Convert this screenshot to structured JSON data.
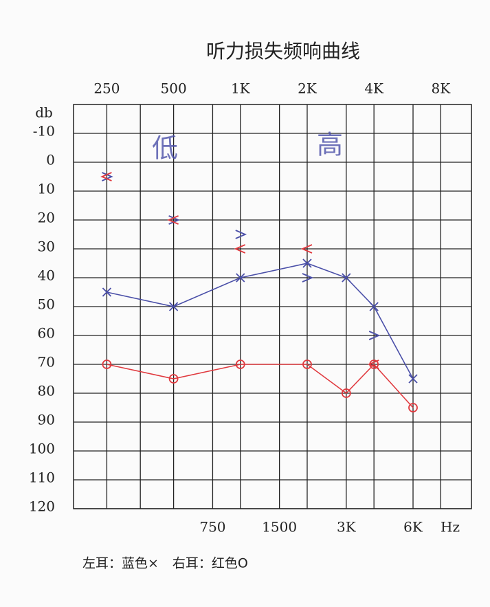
{
  "chart_data": {
    "type": "audiogram",
    "title": "听力损失频响曲线",
    "y_label": "db",
    "x_unit": "Hz",
    "xscale": "log",
    "xlim": [
      177,
      11000
    ],
    "xticks": [
      250,
      500,
      {
        "value": 1000,
        "label": "1K"
      },
      {
        "value": 2000,
        "label": "2K"
      },
      {
        "value": 4000,
        "label": "4K"
      },
      {
        "value": 8000,
        "label": "8K"
      }
    ],
    "x2ticks": [
      750,
      1500,
      {
        "value": 3000,
        "label": "3K"
      },
      {
        "value": 6000,
        "label": "6K"
      }
    ],
    "x_grid": [
      250,
      354,
      500,
      750,
      1000,
      1500,
      2000,
      3000,
      4000,
      6000,
      8000
    ],
    "ylim": [
      -20,
      120
    ],
    "yticks": [
      -10,
      0,
      10,
      20,
      30,
      40,
      50,
      60,
      70,
      80,
      90,
      100,
      110,
      120
    ],
    "grid": true,
    "annotations": [
      "低",
      "高"
    ],
    "series": [
      {
        "name": "左耳：蓝色×",
        "color": "#4a4fa8",
        "marker": "x",
        "line": true,
        "x": [
          250,
          500,
          1000,
          2000,
          3000,
          4000,
          6000
        ],
        "values": [
          45,
          50,
          40,
          35,
          40,
          50,
          75
        ]
      },
      {
        "name": "右耳：红色O",
        "color": "#e0393e",
        "marker": "o",
        "line": true,
        "x": [
          250,
          500,
          1000,
          2000,
          3000,
          4000,
          6000
        ],
        "values": [
          70,
          75,
          70,
          70,
          80,
          70,
          85
        ]
      },
      {
        "color": "#4a4fa8",
        "marker": ">",
        "line": false,
        "x": [
          250,
          500,
          1000,
          2000,
          4000
        ],
        "values": [
          5,
          20,
          25,
          40,
          60
        ]
      },
      {
        "color": "#e0393e",
        "marker": "<",
        "line": false,
        "x": [
          250,
          500,
          1000,
          2000,
          4000
        ],
        "values": [
          5,
          20,
          30,
          30,
          70
        ]
      }
    ]
  }
}
